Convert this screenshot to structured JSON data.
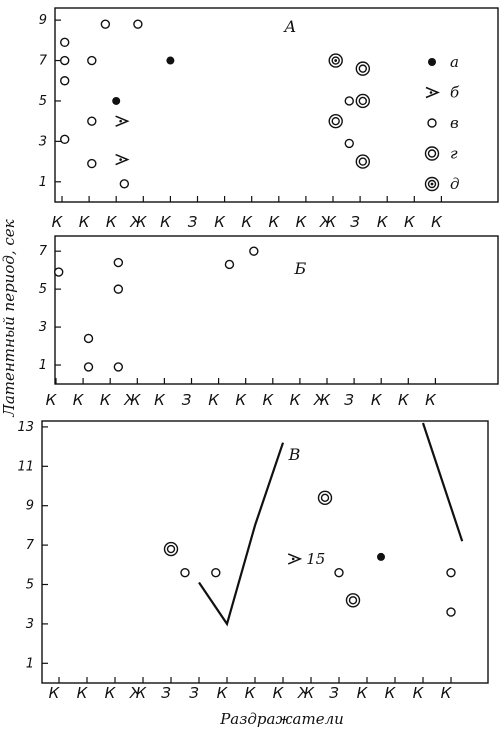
{
  "y_axis_title": "Латентный период, сек",
  "x_axis_title": "Раздражатели",
  "chart_data": [
    {
      "type": "scatter",
      "panel_label": "А",
      "ylim": [
        0,
        9.6
      ],
      "yticks": [
        "1",
        "3",
        "5",
        "7",
        "9"
      ],
      "categories": [
        "К",
        "К",
        "К",
        "Ж",
        "К",
        "З",
        "К",
        "К",
        "К",
        "К",
        "Ж",
        "З",
        "К",
        "К",
        "К"
      ],
      "legend": [
        {
          "marker": "filled",
          "label": "а"
        },
        {
          "marker": "arrow",
          "label": "б"
        },
        {
          "marker": "open",
          "label": "в"
        },
        {
          "marker": "double",
          "label": "г"
        },
        {
          "marker": "target",
          "label": "д"
        }
      ],
      "points": [
        {
          "x": 0.1,
          "y": 7.9,
          "marker": "open"
        },
        {
          "x": 0.1,
          "y": 7.0,
          "marker": "open"
        },
        {
          "x": 0.1,
          "y": 6.0,
          "marker": "open"
        },
        {
          "x": 0.1,
          "y": 3.1,
          "marker": "open"
        },
        {
          "x": 1.1,
          "y": 7.0,
          "marker": "open"
        },
        {
          "x": 1.1,
          "y": 4.0,
          "marker": "open"
        },
        {
          "x": 1.1,
          "y": 1.9,
          "marker": "open"
        },
        {
          "x": 1.6,
          "y": 8.8,
          "marker": "open"
        },
        {
          "x": 2.0,
          "y": 5.0,
          "marker": "filled"
        },
        {
          "x": 2.2,
          "y": 4.0,
          "marker": "arrow"
        },
        {
          "x": 2.2,
          "y": 2.1,
          "marker": "arrow"
        },
        {
          "x": 2.3,
          "y": 0.9,
          "marker": "open"
        },
        {
          "x": 2.8,
          "y": 8.8,
          "marker": "open"
        },
        {
          "x": 4.0,
          "y": 7.0,
          "marker": "filled"
        },
        {
          "x": 10.1,
          "y": 7.0,
          "marker": "target"
        },
        {
          "x": 10.1,
          "y": 4.0,
          "marker": "double"
        },
        {
          "x": 10.6,
          "y": 5.0,
          "marker": "open"
        },
        {
          "x": 10.6,
          "y": 2.9,
          "marker": "open"
        },
        {
          "x": 11.1,
          "y": 6.6,
          "marker": "double"
        },
        {
          "x": 11.1,
          "y": 5.0,
          "marker": "double"
        },
        {
          "x": 11.1,
          "y": 2.0,
          "marker": "double"
        }
      ]
    },
    {
      "type": "scatter",
      "panel_label": "Б",
      "ylim": [
        0,
        7.8
      ],
      "yticks": [
        "1",
        "3",
        "5",
        "7"
      ],
      "categories": [
        "К",
        "К",
        "К",
        "Ж",
        "К",
        "З",
        "К",
        "К",
        "К",
        "К",
        "Ж",
        "З",
        "К",
        "К",
        "К"
      ],
      "points": [
        {
          "x": 0.1,
          "y": 5.9,
          "marker": "open"
        },
        {
          "x": 1.2,
          "y": 2.4,
          "marker": "open"
        },
        {
          "x": 1.2,
          "y": 0.9,
          "marker": "open"
        },
        {
          "x": 2.3,
          "y": 6.4,
          "marker": "open"
        },
        {
          "x": 2.3,
          "y": 5.0,
          "marker": "open"
        },
        {
          "x": 2.3,
          "y": 0.9,
          "marker": "open"
        },
        {
          "x": 6.4,
          "y": 6.3,
          "marker": "open"
        },
        {
          "x": 7.3,
          "y": 7.0,
          "marker": "open"
        }
      ]
    },
    {
      "type": "scatter",
      "panel_label": "В",
      "ylim": [
        0,
        13.3
      ],
      "yticks": [
        "1",
        "3",
        "5",
        "7",
        "9",
        "11",
        "13"
      ],
      "categories": [
        "К",
        "К",
        "К",
        "Ж",
        "З",
        "З",
        "К",
        "К",
        "К",
        "Ж",
        "З",
        "К",
        "К",
        "К",
        "К"
      ],
      "annotation": "15",
      "points": [
        {
          "x": 4.0,
          "y": 6.8,
          "marker": "double"
        },
        {
          "x": 4.5,
          "y": 5.6,
          "marker": "open"
        },
        {
          "x": 5.6,
          "y": 5.6,
          "marker": "open"
        },
        {
          "x": 8.4,
          "y": 6.3,
          "marker": "arrow"
        },
        {
          "x": 9.5,
          "y": 9.4,
          "marker": "double"
        },
        {
          "x": 10.0,
          "y": 5.6,
          "marker": "open"
        },
        {
          "x": 10.5,
          "y": 4.2,
          "marker": "double"
        },
        {
          "x": 11.5,
          "y": 6.4,
          "marker": "filled"
        },
        {
          "x": 14.0,
          "y": 5.6,
          "marker": "open"
        },
        {
          "x": 14.0,
          "y": 3.6,
          "marker": "open"
        }
      ],
      "lines": [
        [
          [
            5.0,
            5.1
          ],
          [
            6.0,
            3.0
          ],
          [
            7.0,
            8.0
          ],
          [
            8.0,
            12.2
          ]
        ],
        [
          [
            13.0,
            13.2
          ],
          [
            14.4,
            7.2
          ]
        ]
      ]
    }
  ]
}
